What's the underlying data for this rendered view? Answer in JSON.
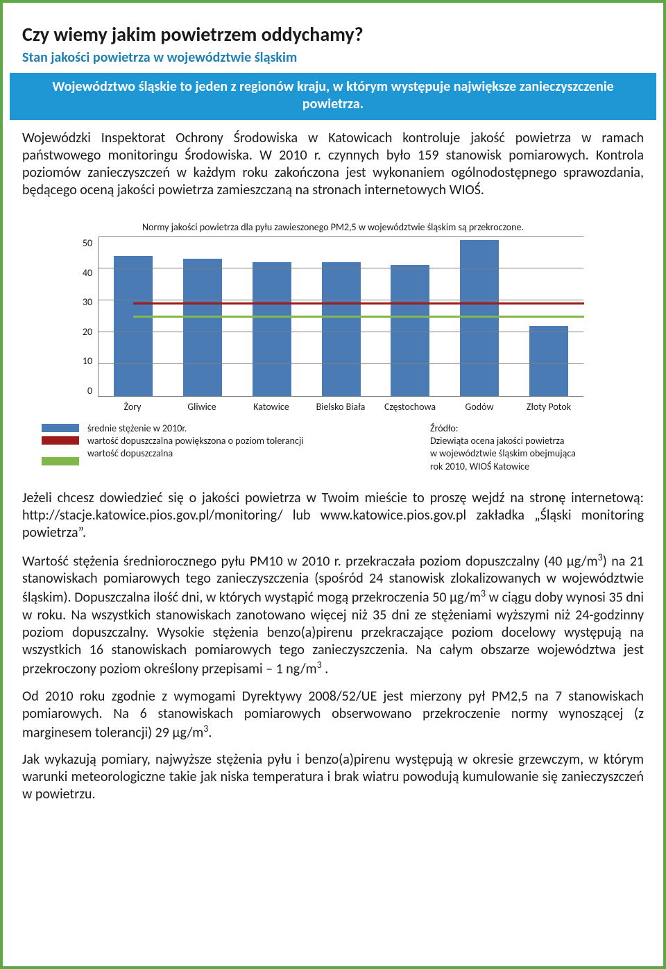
{
  "title": "Czy wiemy jakim powietrzem oddychamy?",
  "subtitle": "Stan jakości powietrza w województwie śląskim",
  "banner": "Województwo śląskie to jeden z regionów kraju, w którym występuje największe zanieczyszczenie powietrza.",
  "para1": "Wojewódzki Inspektorat Ochrony Środowiska w Katowicach kontroluje jakość powietrza w ramach państwowego monitoringu Środowiska. W 2010 r. czynnych było 159 stanowisk pomiarowych. Kontrola poziomów zanieczyszczeń w każdym roku zakończona jest wykonaniem ogólnodostępnego sprawozdania, będącego oceną jakości powietrza zamieszczaną na stronach internetowych WIOŚ.",
  "chart": {
    "type": "bar",
    "title": "Normy jakości powietrza dla pyłu zawieszonego PM2,5 w województwie śląskim są przekroczone.",
    "ymax": 50,
    "ytick_step": 10,
    "yticks": [
      "50",
      "40",
      "30",
      "20",
      "10",
      "0"
    ],
    "categories": [
      "Żory",
      "Gliwice",
      "Katowice",
      "Bielsko Biała",
      "Częstochowa",
      "Godów",
      "Złoty Potok"
    ],
    "values": [
      44,
      43,
      42,
      42,
      41,
      49,
      22
    ],
    "bar_color": "#4a7bb5",
    "grid_color": "#808080",
    "ref_lines": [
      {
        "value": 29,
        "color": "#9e1b1b",
        "thickness": 3
      },
      {
        "value": 25,
        "color": "#82b84a",
        "thickness": 3
      }
    ],
    "ref_left_bar_index": 0,
    "legend_items": [
      {
        "color": "#4a7bb5",
        "label": "średnie stężenie w 2010r."
      },
      {
        "color": "#9e1b1b",
        "label": "wartość dopuszczalna powiększona o poziom tolerancji"
      },
      {
        "color": "#82b84a",
        "label": "wartość dopuszczalna"
      }
    ],
    "source_label": "Źródło:",
    "source_lines": [
      "Dziewiąta ocena jakości powietrza",
      "w województwie śląskim obejmująca",
      "rok 2010, WIOŚ Katowice"
    ]
  },
  "para2": "Jeżeli chcesz dowiedzieć się o jakości powietrza w Twoim mieście to proszę wejdź na stronę internetową: http://stacje.katowice.pios.gov.pl/monitoring/ lub www.katowice.pios.gov.pl  zakładka „Śląski monitoring powietrza”.",
  "para3_html": "Wartość stężenia średniorocznego pyłu PM10 w 2010 r. przekraczała poziom dopuszczalny (40 µg/m<sup>3</sup>) na 21 stanowiskach pomiarowych tego zanieczyszczenia (spośród 24 stanowisk zlokalizowanych w województwie śląskim). Dopuszczalna ilość dni, w których wystąpić mogą przekroczenia 50 µg/m<sup>3</sup> w ciągu doby wynosi 35 dni w roku. Na wszystkich stanowiskach zanotowano więcej niż 35 dni ze stężeniami wyższymi niż 24-godzinny poziom dopuszczalny. Wysokie stężenia benzo(a)pirenu przekraczające poziom docelowy występują na wszystkich 16 stanowiskach pomiarowych tego zanieczyszczenia. Na całym obszarze województwa jest przekroczony  poziom określony przepisami –  1 ng/m<sup>3</sup>  .",
  "para4_html": "Od 2010 roku zgodnie z wymogami Dyrektywy 2008/52/UE jest mierzony pył PM2,5 na 7 stanowiskach pomiarowych. Na 6 stanowiskach pomiarowych obserwowano przekroczenie  normy wynoszącej (z marginesem tolerancji) 29 µg/m<sup>3</sup>.",
  "para5": "Jak wykazują pomiary, najwyższe stężenia pyłu i benzo(a)pirenu występują w okresie grzewczym, w którym warunki meteorologiczne takie jak niska temperatura i brak wiatru powodują kumulowanie się zanieczyszczeń w powietrzu."
}
